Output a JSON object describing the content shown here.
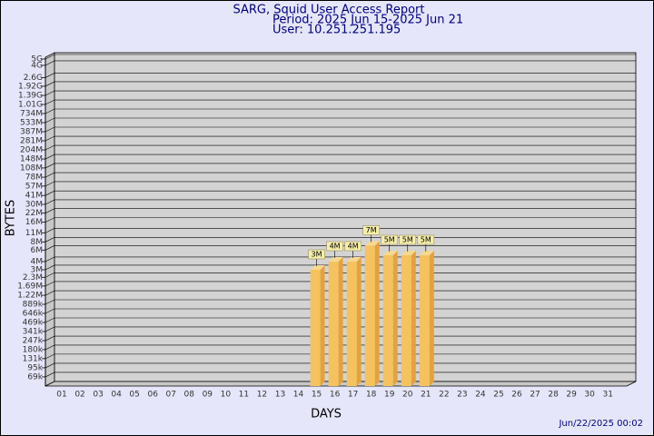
{
  "chart_data": {
    "type": "bar",
    "title": "SARG, Squid User Access Report",
    "subtitle": [
      "Period: 2025 Jun 15-2025 Jun 21",
      "User: 10.251.251.195"
    ],
    "x_label": "DAYS",
    "y_label": "BYTES",
    "footer": "Jun/22/2025 00:02",
    "categories": [
      "01",
      "02",
      "03",
      "04",
      "05",
      "06",
      "07",
      "08",
      "09",
      "10",
      "11",
      "12",
      "13",
      "14",
      "15",
      "16",
      "17",
      "18",
      "19",
      "20",
      "21",
      "22",
      "23",
      "24",
      "25",
      "26",
      "27",
      "28",
      "29",
      "30",
      "31"
    ],
    "values": [
      null,
      null,
      null,
      null,
      null,
      null,
      null,
      null,
      null,
      null,
      null,
      null,
      null,
      null,
      3000000,
      4000000,
      4000000,
      7000000,
      5000000,
      5000000,
      5000000,
      null,
      null,
      null,
      null,
      null,
      null,
      null,
      null,
      null,
      null
    ],
    "value_labels": [
      null,
      null,
      null,
      null,
      null,
      null,
      null,
      null,
      null,
      null,
      null,
      null,
      null,
      null,
      "3M",
      "4M",
      "4M",
      "7M",
      "5M",
      "5M",
      "5M",
      null,
      null,
      null,
      null,
      null,
      null,
      null,
      null,
      null,
      null
    ],
    "color": "#f6c25e",
    "log_scale": true,
    "grid": true,
    "ylim": [
      50000,
      5000000000
    ],
    "yticks": [
      {
        "value": 69000,
        "label": "69k"
      },
      {
        "value": 95000,
        "label": "95k"
      },
      {
        "value": 131000,
        "label": "131k"
      },
      {
        "value": 180000,
        "label": "180k"
      },
      {
        "value": 247000,
        "label": "247k"
      },
      {
        "value": 341000,
        "label": "341k"
      },
      {
        "value": 469000,
        "label": "469k"
      },
      {
        "value": 646000,
        "label": "646k"
      },
      {
        "value": 889000,
        "label": "889k"
      },
      {
        "value": 1220000,
        "label": "1.22M"
      },
      {
        "value": 1690000,
        "label": "1.69M"
      },
      {
        "value": 2300000,
        "label": "2.3M"
      },
      {
        "value": 3000000,
        "label": "3M"
      },
      {
        "value": 4000000,
        "label": "4M"
      },
      {
        "value": 6000000,
        "label": "6M"
      },
      {
        "value": 8000000,
        "label": "8M"
      },
      {
        "value": 11000000,
        "label": "11M"
      },
      {
        "value": 16000000,
        "label": "16M"
      },
      {
        "value": 22000000,
        "label": "22M"
      },
      {
        "value": 30000000,
        "label": "30M"
      },
      {
        "value": 41000000,
        "label": "41M"
      },
      {
        "value": 57000000,
        "label": "57M"
      },
      {
        "value": 78000000,
        "label": "78M"
      },
      {
        "value": 108000000,
        "label": "108M"
      },
      {
        "value": 148000000,
        "label": "148M"
      },
      {
        "value": 204000000,
        "label": "204M"
      },
      {
        "value": 281000000,
        "label": "281M"
      },
      {
        "value": 387000000,
        "label": "387M"
      },
      {
        "value": 533000000,
        "label": "533M"
      },
      {
        "value": 734000000,
        "label": "734M"
      },
      {
        "value": 1010000000,
        "label": "1.01G"
      },
      {
        "value": 1390000000,
        "label": "1.39G"
      },
      {
        "value": 1920000000,
        "label": "1.92G"
      },
      {
        "value": 2600000000,
        "label": "2.6G"
      },
      {
        "value": 4000000000,
        "label": "4G"
      },
      {
        "value": 5000000000,
        "label": "5G"
      }
    ]
  }
}
